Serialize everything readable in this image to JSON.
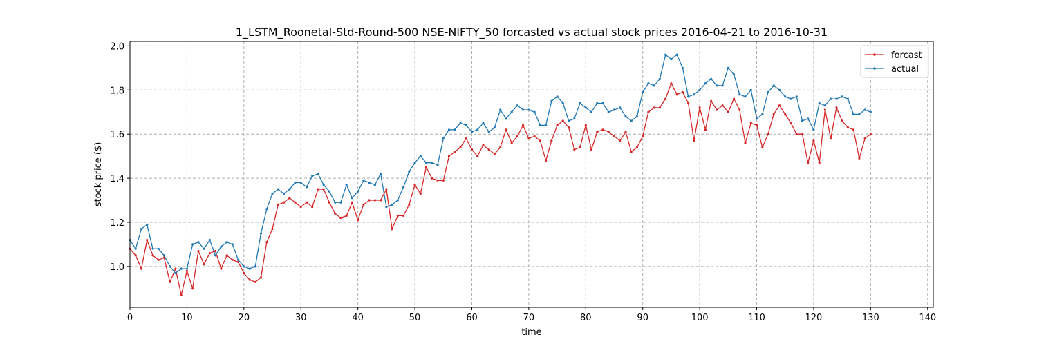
{
  "chart_data": {
    "type": "line",
    "title": "1_LSTM_Roonetal-Std-Round-500 NSE-NIFTY_50 forcasted vs actual stock prices 2016-04-21 to 2016-10-31",
    "xlabel": "time",
    "ylabel": "stock price ($)",
    "xlim": [
      0,
      141
    ],
    "ylim": [
      0.815,
      2.02
    ],
    "xticks": [
      0,
      10,
      20,
      30,
      40,
      50,
      60,
      70,
      80,
      90,
      100,
      110,
      120,
      130,
      140
    ],
    "yticks": [
      1.0,
      1.2,
      1.4,
      1.6,
      1.8,
      2.0
    ],
    "xtick_labels": [
      "0",
      "10",
      "20",
      "30",
      "40",
      "50",
      "60",
      "70",
      "80",
      "90",
      "100",
      "110",
      "120",
      "130",
      "140"
    ],
    "ytick_labels": [
      "1.0",
      "1.2",
      "1.4",
      "1.6",
      "1.8",
      "2.0"
    ],
    "grid": true,
    "grid_style": "dashed",
    "legend_position": "top-right",
    "series": [
      {
        "name": "forcast",
        "color": "#d62728",
        "values": [
          1.08,
          1.05,
          0.99,
          1.12,
          1.05,
          1.03,
          1.04,
          0.93,
          0.99,
          0.87,
          0.98,
          0.9,
          1.07,
          1.01,
          1.06,
          1.07,
          0.99,
          1.05,
          1.03,
          1.02,
          0.97,
          0.94,
          0.93,
          0.95,
          1.11,
          1.17,
          1.28,
          1.29,
          1.31,
          1.29,
          1.27,
          1.29,
          1.27,
          1.35,
          1.35,
          1.29,
          1.24,
          1.22,
          1.23,
          1.29,
          1.21,
          1.28,
          1.3,
          1.3,
          1.3,
          1.35,
          1.17,
          1.23,
          1.23,
          1.28,
          1.37,
          1.33,
          1.45,
          1.4,
          1.39,
          1.39,
          1.5,
          1.52,
          1.54,
          1.58,
          1.53,
          1.5,
          1.55,
          1.53,
          1.51,
          1.54,
          1.62,
          1.56,
          1.59,
          1.64,
          1.58,
          1.59,
          1.57,
          1.48,
          1.57,
          1.64,
          1.66,
          1.63,
          1.53,
          1.54,
          1.64,
          1.53,
          1.61,
          1.62,
          1.61,
          1.59,
          1.57,
          1.61,
          1.52,
          1.54,
          1.59,
          1.7,
          1.72,
          1.72,
          1.76,
          1.83,
          1.78,
          1.79,
          1.74,
          1.57,
          1.72,
          1.62,
          1.75,
          1.71,
          1.73,
          1.7,
          1.76,
          1.71,
          1.56,
          1.65,
          1.64,
          1.54,
          1.6,
          1.69,
          1.73,
          1.69,
          1.65,
          1.6,
          1.6,
          1.47,
          1.57,
          1.47,
          1.71,
          1.58,
          1.72,
          1.66,
          1.63,
          1.62,
          1.49,
          1.58,
          1.6
        ]
      },
      {
        "name": "actual",
        "color": "#1f77b4",
        "values": [
          1.12,
          1.08,
          1.17,
          1.19,
          1.08,
          1.08,
          1.05,
          1.0,
          0.97,
          0.99,
          0.99,
          1.1,
          1.11,
          1.08,
          1.12,
          1.05,
          1.09,
          1.11,
          1.1,
          1.03,
          1.0,
          0.99,
          1.0,
          1.15,
          1.26,
          1.33,
          1.35,
          1.33,
          1.35,
          1.38,
          1.38,
          1.36,
          1.41,
          1.42,
          1.37,
          1.34,
          1.29,
          1.29,
          1.37,
          1.31,
          1.34,
          1.39,
          1.38,
          1.37,
          1.42,
          1.27,
          1.28,
          1.3,
          1.36,
          1.43,
          1.47,
          1.5,
          1.47,
          1.47,
          1.46,
          1.58,
          1.62,
          1.62,
          1.65,
          1.64,
          1.61,
          1.62,
          1.65,
          1.61,
          1.63,
          1.71,
          1.67,
          1.7,
          1.73,
          1.71,
          1.71,
          1.7,
          1.64,
          1.64,
          1.75,
          1.77,
          1.74,
          1.66,
          1.67,
          1.74,
          1.72,
          1.7,
          1.74,
          1.74,
          1.7,
          1.71,
          1.72,
          1.68,
          1.66,
          1.68,
          1.79,
          1.83,
          1.82,
          1.85,
          1.96,
          1.94,
          1.96,
          1.9,
          1.77,
          1.78,
          1.8,
          1.83,
          1.85,
          1.82,
          1.82,
          1.9,
          1.87,
          1.78,
          1.77,
          1.8,
          1.67,
          1.69,
          1.79,
          1.82,
          1.8,
          1.77,
          1.76,
          1.77,
          1.66,
          1.67,
          1.62,
          1.74,
          1.73,
          1.76,
          1.76,
          1.77,
          1.76,
          1.69,
          1.69,
          1.71,
          1.7
        ]
      }
    ]
  }
}
